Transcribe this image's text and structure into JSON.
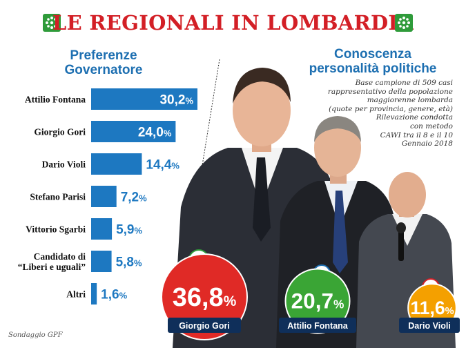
{
  "header": {
    "title": "LE REGIONALI IN LOMBARDIA"
  },
  "left_heading": {
    "line1": "Preferenze",
    "line2": "Governatore"
  },
  "right_heading": {
    "line1": "Conoscenza",
    "line2": "personalità politiche"
  },
  "note_lines": [
    "Base campione di 509 casi",
    "rappresentativo della popolazione",
    "maggiorenne lombarda",
    "(quote per provincia, genere, età)",
    "Rilevazione condotta",
    "con metodo",
    "CAWI tra il 8 e il 10",
    "Gennaio 2018"
  ],
  "footer": "Sondaggio GPF",
  "colors": {
    "bar": "#1d78c1",
    "title": "#d31f26",
    "heading": "#1d6fb1",
    "circle_red": "#e02a26",
    "circle_green": "#3aa535",
    "circle_orange": "#f4a000",
    "name_box": "#0f2f5a"
  },
  "chart_data": [
    {
      "type": "bar",
      "orientation": "horizontal",
      "title": "Preferenze Governatore",
      "categories": [
        "Attilio Fontana",
        "Giorgio Gori",
        "Dario Violi",
        "Stefano Parisi",
        "Vittorio Sgarbi",
        "Candidato di \"Liberi e uguali\"",
        "Altri"
      ],
      "category_lines": [
        [
          "Attilio Fontana"
        ],
        [
          "Giorgio Gori"
        ],
        [
          "Dario Violi"
        ],
        [
          "Stefano Parisi"
        ],
        [
          "Vittorio Sgarbi"
        ],
        [
          "Candidato di",
          "“Liberi e uguali”"
        ],
        [
          "Altri"
        ]
      ],
      "values": [
        30.2,
        24.0,
        14.4,
        7.2,
        5.9,
        5.8,
        1.6
      ],
      "value_labels": [
        "30,2",
        "24,0",
        "14,4",
        "7,2",
        "5,9",
        "5,8",
        "1,6"
      ],
      "unit": "%",
      "xlim": [
        0,
        30.2
      ]
    },
    {
      "type": "bubble",
      "title": "Conoscenza personalità politiche",
      "categories": [
        "Giorgio Gori",
        "Attilio Fontana",
        "Dario Violi"
      ],
      "values": [
        36.8,
        20.7,
        11.6
      ],
      "value_labels": [
        "36,8",
        "20,7",
        "11,6"
      ],
      "unit": "%"
    }
  ]
}
